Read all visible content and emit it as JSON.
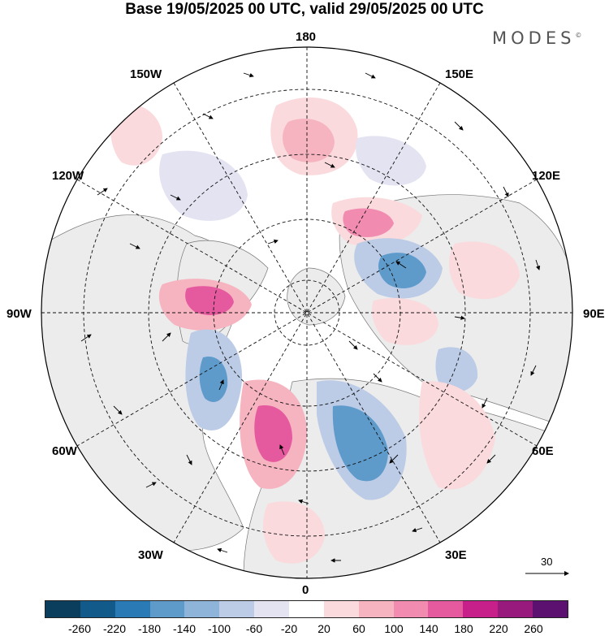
{
  "header": {
    "title": "Base 19/05/2025 00 UTC, valid 29/05/2025 00 UTC",
    "brand": "MODES"
  },
  "map": {
    "projection": "polar-stereographic-north",
    "longitude_labels": {
      "top": "180",
      "top_left": "150W",
      "top_right": "150E",
      "upper_left": "120W",
      "upper_right": "120E",
      "left": "90W",
      "right": "90E",
      "lower_left": "60W",
      "lower_right": "60E",
      "bottom_left": "30W",
      "bottom_right": "30E",
      "bottom": "0"
    },
    "land_color": "#ececec",
    "vector_reference": "30"
  },
  "colorbar": {
    "colors": [
      "#0b3d5c",
      "#125a8a",
      "#2a7bb5",
      "#5e9bcb",
      "#8fb4d9",
      "#bccbe6",
      "#e3e3f2",
      "#ffffff",
      "#fadadd",
      "#f6b3c0",
      "#f18cb0",
      "#e55a9e",
      "#c8208a",
      "#971a7c",
      "#5c106f"
    ],
    "tick_labels": [
      "-260",
      "-220",
      "-180",
      "-140",
      "-100",
      "-60",
      "-20",
      "20",
      "60",
      "100",
      "140",
      "180",
      "220",
      "260"
    ]
  }
}
